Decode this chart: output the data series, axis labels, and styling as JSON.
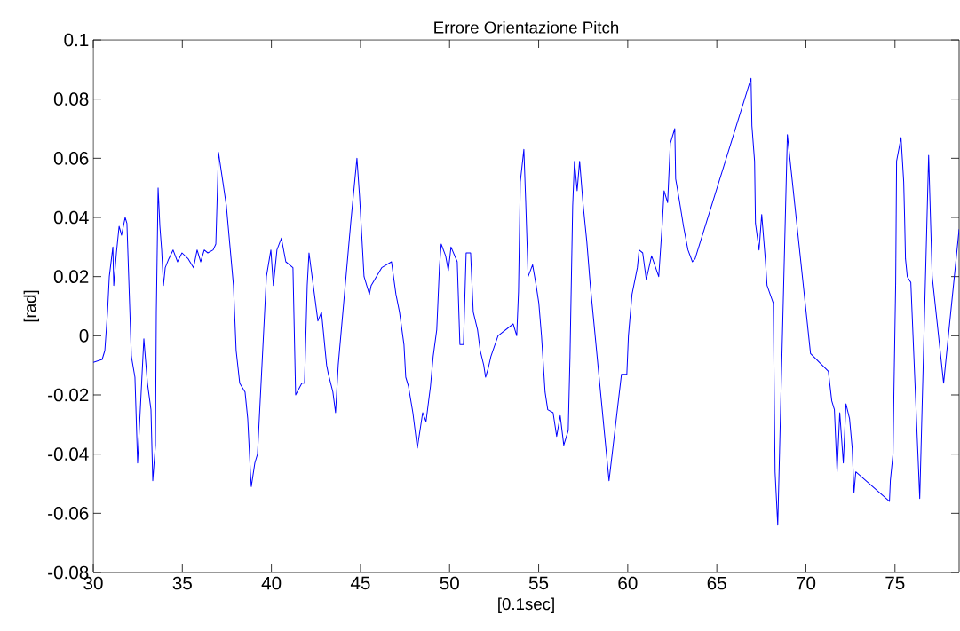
{
  "chart_data": {
    "type": "line",
    "title": "Errore Orientazione Pitch",
    "xlabel": "[0.1sec]",
    "ylabel": "[rad]",
    "xlim": [
      30,
      78.6
    ],
    "ylim": [
      -0.08,
      0.1
    ],
    "xticks": [
      30,
      35,
      40,
      45,
      50,
      55,
      60,
      65,
      70,
      75
    ],
    "yticks": [
      -0.08,
      -0.06,
      -0.04,
      -0.02,
      0,
      0.02,
      0.04,
      0.06,
      0.08,
      0.1
    ],
    "grid": false,
    "marker": "none",
    "line_style": "solid",
    "series": [
      {
        "color": "#0000ff",
        "x": [
          30.0,
          30.5,
          30.65,
          30.8,
          30.9,
          31.1,
          31.15,
          31.3,
          31.45,
          31.59,
          31.79,
          31.89,
          31.99,
          32.14,
          32.34,
          32.49,
          32.84,
          33.04,
          33.24,
          33.34,
          33.49,
          33.54,
          33.64,
          33.74,
          33.84,
          33.94,
          34.04,
          34.24,
          34.48,
          34.73,
          34.98,
          35.33,
          35.63,
          35.83,
          36.03,
          36.23,
          36.43,
          36.73,
          36.88,
          37.03,
          37.47,
          37.87,
          38.02,
          38.22,
          38.52,
          38.67,
          38.82,
          38.87,
          39.07,
          39.22,
          39.72,
          39.97,
          40.11,
          40.31,
          40.56,
          40.81,
          41.21,
          41.36,
          41.71,
          41.86,
          42.01,
          42.11,
          42.61,
          42.81,
          43.1,
          43.2,
          43.45,
          43.6,
          43.75,
          44.1,
          44.45,
          44.8,
          44.95,
          45.2,
          45.5,
          45.6,
          46.19,
          46.74,
          46.99,
          47.19,
          47.44,
          47.54,
          47.69,
          47.94,
          48.19,
          48.49,
          48.68,
          48.93,
          49.08,
          49.28,
          49.43,
          49.53,
          49.78,
          49.93,
          50.08,
          50.43,
          50.58,
          50.78,
          50.93,
          51.18,
          51.33,
          51.57,
          51.72,
          51.92,
          52.02,
          52.17,
          52.32,
          52.72,
          53.57,
          53.77,
          53.87,
          53.97,
          54.17,
          54.27,
          54.41,
          54.66,
          54.86,
          55.01,
          55.16,
          55.36,
          55.51,
          55.81,
          56.01,
          56.21,
          56.41,
          56.66,
          56.76,
          56.91,
          57.01,
          57.16,
          57.3,
          57.5,
          57.7,
          57.9,
          58.95,
          59.65,
          59.95,
          60.04,
          60.24,
          60.54,
          60.64,
          60.84,
          61.04,
          61.34,
          61.74,
          61.94,
          62.04,
          62.24,
          62.39,
          62.64,
          62.69,
          62.89,
          63.13,
          63.38,
          63.63,
          63.78,
          66.92,
          66.97,
          67.12,
          67.17,
          67.37,
          67.52,
          67.72,
          67.82,
          68.17,
          68.27,
          68.42,
          68.96,
          70.26,
          71.26,
          71.45,
          71.6,
          71.75,
          71.9,
          72.1,
          72.25,
          72.45,
          72.6,
          72.7,
          72.8,
          74.69,
          74.74,
          74.89,
          74.94,
          75.04,
          75.09,
          75.34,
          75.49,
          75.54,
          75.59,
          75.69,
          75.89,
          76.39,
          76.89,
          77.09,
          77.73,
          78.6
        ],
        "values": [
          -0.009,
          -0.008,
          -0.005,
          0.008,
          0.02,
          0.03,
          0.017,
          0.028,
          0.037,
          0.034,
          0.04,
          0.038,
          0.02,
          -0.007,
          -0.014,
          -0.043,
          -0.001,
          -0.016,
          -0.025,
          -0.049,
          -0.037,
          0.008,
          0.05,
          0.037,
          0.029,
          0.017,
          0.023,
          0.026,
          0.029,
          0.025,
          0.028,
          0.026,
          0.023,
          0.029,
          0.025,
          0.029,
          0.028,
          0.029,
          0.031,
          0.062,
          0.044,
          0.017,
          -0.005,
          -0.016,
          -0.019,
          -0.028,
          -0.046,
          -0.051,
          -0.043,
          -0.04,
          0.02,
          0.029,
          0.017,
          0.029,
          0.033,
          0.025,
          0.023,
          -0.02,
          -0.016,
          -0.016,
          0.017,
          0.028,
          0.005,
          0.008,
          -0.01,
          -0.013,
          -0.019,
          -0.026,
          -0.01,
          0.014,
          0.038,
          0.06,
          0.047,
          0.02,
          0.014,
          0.017,
          0.023,
          0.025,
          0.014,
          0.008,
          -0.003,
          -0.014,
          -0.017,
          -0.026,
          -0.038,
          -0.026,
          -0.029,
          -0.017,
          -0.007,
          0.002,
          0.023,
          0.031,
          0.027,
          0.022,
          0.03,
          0.025,
          -0.003,
          -0.003,
          0.028,
          0.028,
          0.008,
          0.002,
          -0.005,
          -0.01,
          -0.014,
          -0.011,
          -0.007,
          0.0,
          0.004,
          0.0,
          0.015,
          0.052,
          0.063,
          0.046,
          0.02,
          0.024,
          0.017,
          0.011,
          0.0,
          -0.019,
          -0.025,
          -0.026,
          -0.034,
          -0.027,
          -0.037,
          -0.032,
          -0.007,
          0.044,
          0.059,
          0.049,
          0.059,
          0.044,
          0.032,
          0.017,
          -0.049,
          -0.013,
          -0.013,
          0.0,
          0.014,
          0.023,
          0.029,
          0.028,
          0.019,
          0.027,
          0.02,
          0.038,
          0.049,
          0.045,
          0.065,
          0.07,
          0.053,
          0.046,
          0.037,
          0.029,
          0.025,
          0.026,
          0.087,
          0.071,
          0.059,
          0.038,
          0.029,
          0.041,
          0.026,
          0.017,
          0.011,
          -0.046,
          -0.064,
          0.068,
          -0.006,
          -0.012,
          -0.022,
          -0.025,
          -0.046,
          -0.026,
          -0.043,
          -0.023,
          -0.028,
          -0.038,
          -0.053,
          -0.046,
          -0.056,
          -0.049,
          -0.04,
          -0.019,
          0.018,
          0.059,
          0.067,
          0.052,
          0.04,
          0.026,
          0.02,
          0.018,
          -0.055,
          0.061,
          0.02,
          -0.016,
          0.036
        ]
      }
    ]
  }
}
